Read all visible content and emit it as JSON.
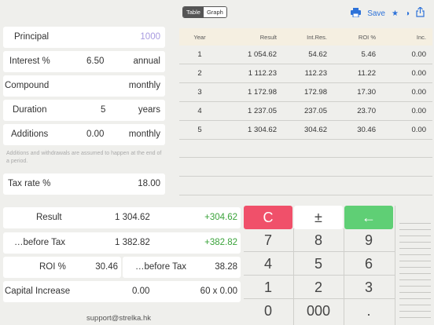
{
  "toolbar": {
    "tab_table": "Table",
    "tab_graph": "Graph",
    "save_label": "Save"
  },
  "inputs": {
    "principal_label": "Principal",
    "principal_value": "1000",
    "interest_label": "Interest %",
    "interest_value": "6.50",
    "interest_period": "annual",
    "compound_label": "Compound",
    "compound_value": "monthly",
    "duration_label": "Duration",
    "duration_value": "5",
    "duration_unit": "years",
    "additions_label": "Additions",
    "additions_value": "0.00",
    "additions_period": "monthly",
    "note": "Additions and withdrawals are assumed to happen at the end of a period.",
    "tax_label": "Tax rate %",
    "tax_value": "18.00"
  },
  "table": {
    "headers": [
      "Year",
      "Result",
      "Int.Res.",
      "ROI %",
      "Inc."
    ],
    "rows": [
      [
        "1",
        "1 054.62",
        "54.62",
        "5.46",
        "0.00"
      ],
      [
        "2",
        "1 112.23",
        "112.23",
        "11.22",
        "0.00"
      ],
      [
        "3",
        "1 172.98",
        "172.98",
        "17.30",
        "0.00"
      ],
      [
        "4",
        "1 237.05",
        "237.05",
        "23.70",
        "0.00"
      ],
      [
        "5",
        "1 304.62",
        "304.62",
        "30.46",
        "0.00"
      ]
    ]
  },
  "results": {
    "result_label": "Result",
    "result_value": "1 304.62",
    "result_gain": "+304.62",
    "before_tax_label": "…before Tax",
    "before_tax_value": "1 382.82",
    "before_tax_gain": "+382.82",
    "roi_label": "ROI %",
    "roi_value": "30.46",
    "roi_before_label": "…before Tax",
    "roi_before_value": "38.28",
    "capital_label": "Capital Increase",
    "capital_value": "0.00",
    "capital_mult": "60 x 0.00"
  },
  "support": "support@strelka.hk",
  "keypad": {
    "clear": "C",
    "sign": "±",
    "back": "←",
    "k7": "7",
    "k8": "8",
    "k9": "9",
    "k4": "4",
    "k5": "5",
    "k6": "6",
    "k1": "1",
    "k2": "2",
    "k3": "3",
    "k0": "0",
    "k000": "000",
    "kdot": "."
  },
  "colors": {
    "accent": "#2d72d9",
    "clear_key": "#f0506a",
    "back_key": "#5fcf75",
    "gain": "#3aa33a",
    "principal": "#a89be0"
  }
}
